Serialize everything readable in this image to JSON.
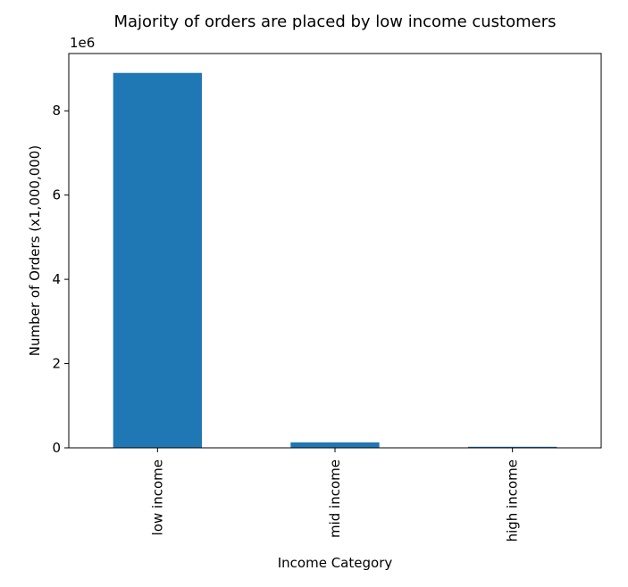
{
  "chart_data": {
    "type": "bar",
    "title": "Majority of orders are placed by low income customers",
    "xlabel": "Income Category",
    "ylabel": "Number of Orders (x1,000,000)",
    "categories": [
      "low income",
      "mid income",
      "high income"
    ],
    "values": [
      8900000,
      130000,
      25000
    ],
    "ylim": [
      0,
      9360000
    ],
    "y_ticks": [
      {
        "value": 0,
        "label": "0"
      },
      {
        "value": 2000000,
        "label": "2"
      },
      {
        "value": 4000000,
        "label": "4"
      },
      {
        "value": 6000000,
        "label": "6"
      },
      {
        "value": 8000000,
        "label": "8"
      }
    ],
    "y_offset_label": "1e6",
    "bar_color": "#1f77b4",
    "grid": false,
    "legend": "none"
  }
}
